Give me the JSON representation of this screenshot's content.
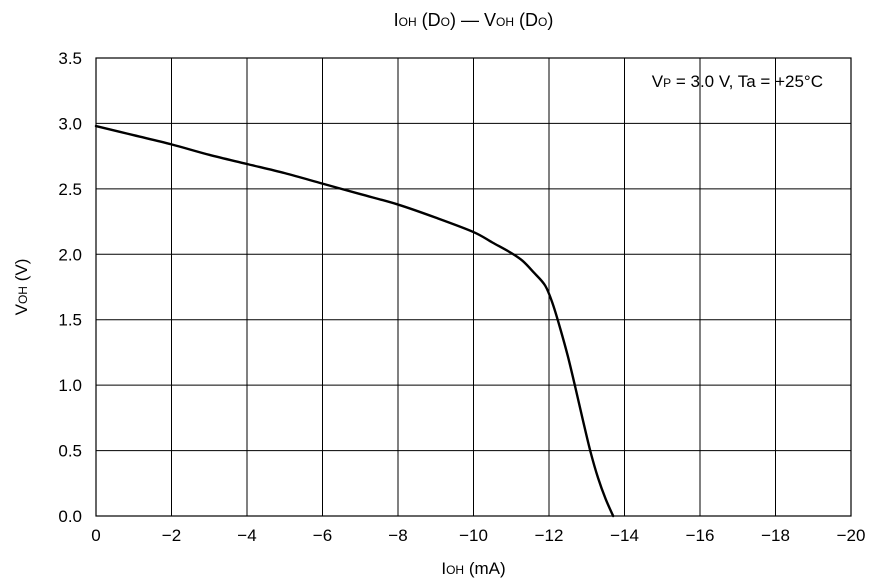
{
  "chart_data": {
    "type": "line",
    "title": {
      "parts": [
        {
          "text": "I",
          "sub": false
        },
        {
          "text": "OH",
          "sub": true
        },
        {
          "text": " (D",
          "sub": false
        },
        {
          "text": "O",
          "sub": true
        },
        {
          "text": ") — V",
          "sub": false
        },
        {
          "text": "OH",
          "sub": true
        },
        {
          "text": " (D",
          "sub": false
        },
        {
          "text": "O",
          "sub": true
        },
        {
          "text": ")",
          "sub": false
        }
      ]
    },
    "xlabel": {
      "parts": [
        {
          "text": "I",
          "sub": false
        },
        {
          "text": "OH",
          "sub": true
        },
        {
          "text": " (mA)",
          "sub": false
        }
      ]
    },
    "ylabel": {
      "parts": [
        {
          "text": "V",
          "sub": false
        },
        {
          "text": "OH",
          "sub": true
        },
        {
          "text": " (V)",
          "sub": false
        }
      ]
    },
    "annotation": {
      "parts": [
        {
          "text": "V",
          "sub": false
        },
        {
          "text": "P",
          "sub": true
        },
        {
          "text": " = 3.0 V, Ta = +25°C",
          "sub": false
        }
      ],
      "placement": "top-right"
    },
    "xlim": [
      0,
      -20
    ],
    "ylim": [
      0,
      3.5
    ],
    "x_ticks": [
      0,
      -2,
      -4,
      -6,
      -8,
      -10,
      -12,
      -14,
      -16,
      -18,
      -20
    ],
    "x_tick_labels": [
      "0",
      "−2",
      "−4",
      "−6",
      "−8",
      "−10",
      "−12",
      "−14",
      "−16",
      "−18",
      "−20"
    ],
    "y_ticks": [
      0,
      0.5,
      1.0,
      1.5,
      2.0,
      2.5,
      3.0,
      3.5
    ],
    "y_tick_labels": [
      "0.0",
      "0.5",
      "1.0",
      "1.5",
      "2.0",
      "2.5",
      "3.0",
      "3.5"
    ],
    "grid": true,
    "series": [
      {
        "x": [
          0,
          -1,
          -2,
          -3,
          -4,
          -5,
          -6,
          -7,
          -8,
          -9,
          -10,
          -10.5,
          -11,
          -11.3,
          -11.6,
          -11.9,
          -12.1,
          -12.3,
          -12.5,
          -12.7,
          -12.9,
          -13.1,
          -13.3,
          -13.5,
          -13.7
        ],
        "y": [
          2.98,
          2.91,
          2.84,
          2.76,
          2.69,
          2.62,
          2.54,
          2.46,
          2.38,
          2.28,
          2.17,
          2.09,
          2.01,
          1.95,
          1.86,
          1.76,
          1.62,
          1.43,
          1.22,
          0.98,
          0.73,
          0.49,
          0.29,
          0.13,
          0.0
        ]
      }
    ],
    "colors": {
      "line": "#000000",
      "grid": "#000000",
      "background": "#ffffff"
    }
  }
}
